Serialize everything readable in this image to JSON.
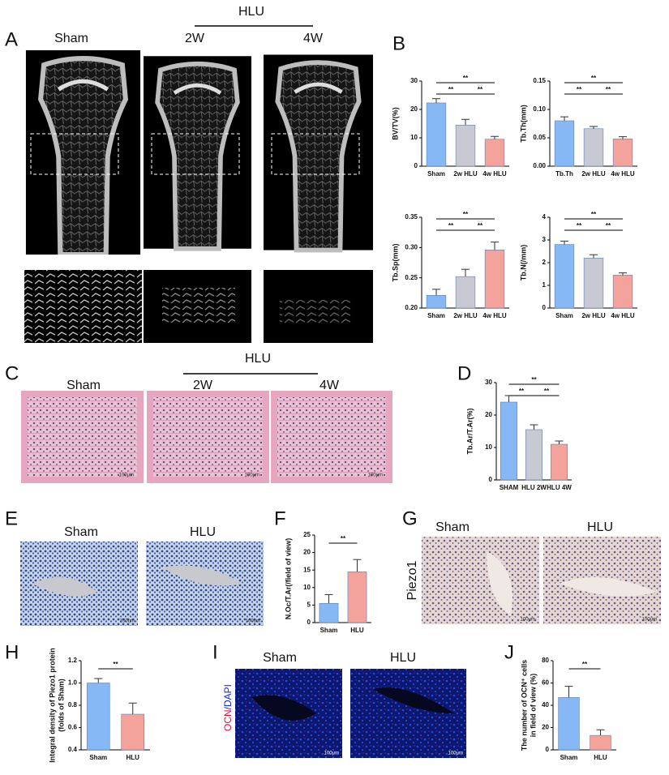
{
  "figure": {
    "A": {
      "letter": "A",
      "group": "HLU",
      "columns": [
        "Sham",
        "2W",
        "4W"
      ]
    },
    "B": {
      "letter": "B"
    },
    "C": {
      "letter": "C",
      "group": "HLU",
      "columns": [
        "Sham",
        "2W",
        "4W"
      ],
      "scale_bar": "100μm"
    },
    "D": {
      "letter": "D"
    },
    "E": {
      "letter": "E",
      "columns": [
        "Sham",
        "HLU"
      ],
      "scale_bar": "100um"
    },
    "F": {
      "letter": "F"
    },
    "G": {
      "letter": "G",
      "columns": [
        "Sham",
        "HLU"
      ],
      "row_label": "Piezo1",
      "scale_bar": "100μm"
    },
    "H": {
      "letter": "H"
    },
    "I": {
      "letter": "I",
      "columns": [
        "Sham",
        "HLU"
      ],
      "row_label_parts": [
        "OCN",
        "/DAPI"
      ],
      "scale_bar": "100μm"
    },
    "J": {
      "letter": "J"
    }
  },
  "chart_data": [
    {
      "type": "bar",
      "ylabel": "BV/TV(%)",
      "categories": [
        "Sham",
        "2w HLU",
        "4w HLU"
      ],
      "values": [
        22.3,
        14.5,
        9.5
      ],
      "errors": [
        1.5,
        2,
        1
      ],
      "colors": [
        "#86b8f6",
        "#c9c9d4",
        "#f4a29c"
      ],
      "ylim": [
        0,
        30
      ],
      "yticks": [
        0,
        10,
        20,
        30
      ],
      "comparisons": [
        {
          "from": 0,
          "to": 1,
          "label": "**"
        },
        {
          "from": 1,
          "to": 2,
          "label": "**"
        },
        {
          "from": 0,
          "to": 2,
          "label": "**"
        }
      ]
    },
    {
      "type": "bar",
      "ylabel": "Tb.Th(mm)",
      "categories": [
        "Tb.Th",
        "2w HLU",
        "4w HLU"
      ],
      "values": [
        0.08,
        0.066,
        0.048
      ],
      "errors": [
        0.007,
        0.004,
        0.004
      ],
      "colors": [
        "#86b8f6",
        "#c9c9d4",
        "#f4a29c"
      ],
      "ylim": [
        0,
        0.15
      ],
      "yticks": [
        {
          "value": 0,
          "label": "0.00"
        },
        {
          "value": 0.05,
          "label": "0.05"
        },
        {
          "value": 0.1,
          "label": "0.10"
        },
        {
          "value": 0.15,
          "label": "0.15"
        }
      ],
      "comparisons": [
        {
          "from": 0,
          "to": 1,
          "label": "**"
        },
        {
          "from": 1,
          "to": 2,
          "label": "**"
        },
        {
          "from": 0,
          "to": 2,
          "label": "**"
        }
      ]
    },
    {
      "type": "bar",
      "ylabel": "Tb.Sp(mm)",
      "categories": [
        "Sham",
        "2w HLU",
        "4w HLU"
      ],
      "values": [
        0.221,
        0.252,
        0.296
      ],
      "errors": [
        0.01,
        0.012,
        0.013
      ],
      "colors": [
        "#86b8f6",
        "#c9c9d4",
        "#f4a29c"
      ],
      "ylim": [
        0.2,
        0.35
      ],
      "yticks": [
        {
          "value": 0.2,
          "label": "0.20"
        },
        {
          "value": 0.25,
          "label": "0.25"
        },
        {
          "value": 0.3,
          "label": "0.30"
        },
        {
          "value": 0.35,
          "label": "0.35"
        }
      ],
      "comparisons": [
        {
          "from": 0,
          "to": 1,
          "label": "**"
        },
        {
          "from": 1,
          "to": 2,
          "label": "**"
        },
        {
          "from": 0,
          "to": 2,
          "label": "**"
        }
      ]
    },
    {
      "type": "bar",
      "ylabel": "Tb.N(/mm)",
      "categories": [
        "Sham",
        "2w HLU",
        "4w HLU"
      ],
      "values": [
        2.8,
        2.2,
        1.45
      ],
      "errors": [
        0.15,
        0.15,
        0.1
      ],
      "colors": [
        "#86b8f6",
        "#c9c9d4",
        "#f4a29c"
      ],
      "ylim": [
        0,
        4
      ],
      "yticks": [
        0,
        1,
        2,
        3,
        4
      ],
      "comparisons": [
        {
          "from": 0,
          "to": 1,
          "label": "**"
        },
        {
          "from": 1,
          "to": 2,
          "label": "**"
        },
        {
          "from": 0,
          "to": 2,
          "label": "**"
        }
      ]
    },
    {
      "type": "bar",
      "ylabel": "Tb.Ar/T.Ar(%)",
      "categories": [
        "SHAM",
        "HLU 2W",
        "HLU 4W"
      ],
      "values": [
        24,
        15.5,
        11
      ],
      "errors": [
        2,
        1.5,
        1
      ],
      "colors": [
        "#86b8f6",
        "#c9c9d4",
        "#f4a29c"
      ],
      "ylim": [
        0,
        30
      ],
      "yticks": [
        0,
        10,
        20,
        30
      ],
      "comparisons": [
        {
          "from": 0,
          "to": 1,
          "label": "**"
        },
        {
          "from": 1,
          "to": 2,
          "label": "**"
        },
        {
          "from": 0,
          "to": 2,
          "label": "**"
        }
      ]
    },
    {
      "type": "bar",
      "ylabel": "N.Oc/T.Ar(/field of view)",
      "categories": [
        "Sham",
        "HLU"
      ],
      "values": [
        5.5,
        14.5
      ],
      "errors": [
        2.5,
        3.5
      ],
      "colors": [
        "#86b8f6",
        "#f4a29c"
      ],
      "ylim": [
        0,
        25
      ],
      "yticks": [
        0,
        5,
        10,
        15,
        20,
        25
      ],
      "comparisons": [
        {
          "from": 0,
          "to": 1,
          "label": "**"
        }
      ]
    },
    {
      "type": "bar",
      "ylabel": [
        "Integral density of Piezo1 protein",
        "(folds of Sham)"
      ],
      "categories": [
        "Sham",
        "HLU"
      ],
      "values": [
        1.0,
        0.72
      ],
      "errors": [
        0.04,
        0.1
      ],
      "colors": [
        "#86b8f6",
        "#f4a29c"
      ],
      "ylim": [
        0.4,
        1.2
      ],
      "yticks": [
        0.4,
        0.6,
        0.8,
        {
          "value": 1.0,
          "label": "1.0"
        },
        1.2
      ],
      "comparisons": [
        {
          "from": 0,
          "to": 1,
          "label": "**"
        }
      ]
    },
    {
      "type": "bar",
      "ylabel": [
        "The number of OCN⁺ cells",
        "in field of view (%)"
      ],
      "categories": [
        "Sham",
        "HLU"
      ],
      "values": [
        47,
        13
      ],
      "errors": [
        10,
        5
      ],
      "colors": [
        "#86b8f6",
        "#f4a29c"
      ],
      "ylim": [
        0,
        80
      ],
      "yticks": [
        0,
        20,
        40,
        60,
        80
      ],
      "comparisons": [
        {
          "from": 0,
          "to": 1,
          "label": "**"
        }
      ]
    }
  ]
}
